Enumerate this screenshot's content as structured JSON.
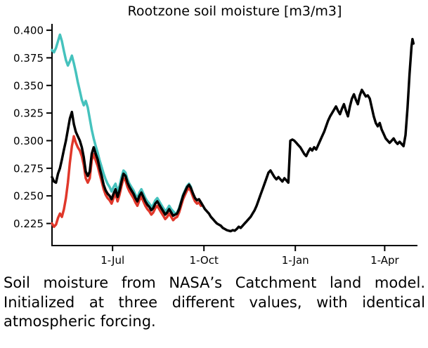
{
  "figure": {
    "background": "#ffffff"
  },
  "chart_data": {
    "type": "line",
    "title": "Rootzone soil moisture [m3/m3]",
    "xlabel": "",
    "ylabel": "",
    "grid": false,
    "legend": "none",
    "xlim": [
      0,
      368
    ],
    "ylim": [
      0.205,
      0.4045
    ],
    "x_ticks": [
      {
        "label": "1-Jul",
        "value": 61
      },
      {
        "label": "1-Oct",
        "value": 153
      },
      {
        "label": "1-Jan",
        "value": 245
      },
      {
        "label": "1-Apr",
        "value": 335
      }
    ],
    "y_ticks": [
      {
        "label": "0.400",
        "value": 0.4
      },
      {
        "label": "0.375",
        "value": 0.375
      },
      {
        "label": "0.350",
        "value": 0.35
      },
      {
        "label": "0.325",
        "value": 0.325
      },
      {
        "label": "0.300",
        "value": 0.3
      },
      {
        "label": "0.275",
        "value": 0.275
      },
      {
        "label": "0.250",
        "value": 0.25
      },
      {
        "label": "0.225",
        "value": 0.225
      }
    ],
    "series": [
      {
        "name": "teal-high-initialization",
        "color": "#45c2bd",
        "x": [
          0,
          2,
          4,
          6,
          8,
          10,
          12,
          14,
          16,
          18,
          20,
          22,
          24,
          26,
          28,
          30,
          32,
          34,
          36,
          38,
          40,
          42,
          44,
          46,
          48,
          50,
          52,
          54,
          56,
          58,
          60,
          62,
          64,
          66,
          68,
          70,
          72,
          74,
          76,
          78,
          80,
          82,
          84,
          86,
          88,
          90,
          92,
          94,
          96,
          98,
          100,
          102,
          104,
          106,
          108,
          110,
          112,
          114,
          116,
          118,
          120,
          122,
          124,
          126,
          128,
          130,
          132,
          134,
          136,
          138,
          140
        ],
        "y": [
          0.382,
          0.38,
          0.384,
          0.39,
          0.396,
          0.39,
          0.381,
          0.373,
          0.368,
          0.372,
          0.377,
          0.37,
          0.362,
          0.353,
          0.345,
          0.337,
          0.332,
          0.336,
          0.33,
          0.32,
          0.31,
          0.302,
          0.295,
          0.289,
          0.282,
          0.276,
          0.27,
          0.265,
          0.261,
          0.258,
          0.254,
          0.258,
          0.261,
          0.254,
          0.259,
          0.267,
          0.273,
          0.271,
          0.265,
          0.261,
          0.258,
          0.255,
          0.251,
          0.248,
          0.253,
          0.256,
          0.252,
          0.248,
          0.245,
          0.243,
          0.24,
          0.242,
          0.246,
          0.248,
          0.245,
          0.242,
          0.239,
          0.236,
          0.238,
          0.241,
          0.238,
          0.236,
          0.234,
          0.235,
          0.239,
          0.245,
          0.251,
          0.255,
          0.259,
          0.261,
          0.258
        ]
      },
      {
        "name": "red-low-initialization",
        "color": "#e0372a",
        "x": [
          0,
          2,
          4,
          6,
          8,
          10,
          12,
          14,
          16,
          18,
          20,
          22,
          24,
          26,
          28,
          30,
          32,
          34,
          36,
          38,
          40,
          42,
          44,
          46,
          48,
          50,
          52,
          54,
          56,
          58,
          60,
          62,
          64,
          66,
          68,
          70,
          72,
          74,
          76,
          78,
          80,
          82,
          84,
          86,
          88,
          90,
          92,
          94,
          96,
          98,
          100,
          102,
          104,
          106,
          108,
          110,
          112,
          114,
          116,
          118,
          120,
          122,
          124,
          126,
          128,
          130,
          132,
          134,
          136,
          138,
          140,
          142,
          144,
          146,
          148,
          150
        ],
        "y": [
          0.225,
          0.222,
          0.224,
          0.23,
          0.234,
          0.231,
          0.238,
          0.248,
          0.262,
          0.28,
          0.295,
          0.304,
          0.298,
          0.294,
          0.291,
          0.286,
          0.278,
          0.266,
          0.262,
          0.266,
          0.282,
          0.288,
          0.282,
          0.277,
          0.27,
          0.263,
          0.256,
          0.251,
          0.248,
          0.246,
          0.243,
          0.248,
          0.252,
          0.245,
          0.251,
          0.259,
          0.266,
          0.264,
          0.258,
          0.254,
          0.251,
          0.248,
          0.244,
          0.241,
          0.246,
          0.249,
          0.245,
          0.241,
          0.238,
          0.236,
          0.233,
          0.235,
          0.239,
          0.241,
          0.238,
          0.235,
          0.232,
          0.229,
          0.231,
          0.234,
          0.231,
          0.228,
          0.23,
          0.231,
          0.235,
          0.241,
          0.247,
          0.251,
          0.255,
          0.257,
          0.254,
          0.249,
          0.245,
          0.243,
          0.244,
          0.241
        ]
      },
      {
        "name": "black-middle-initialization",
        "color": "#000000",
        "x": [
          0,
          2,
          4,
          6,
          8,
          10,
          12,
          14,
          16,
          18,
          20,
          22,
          24,
          26,
          28,
          30,
          32,
          34,
          36,
          38,
          40,
          42,
          44,
          46,
          48,
          50,
          52,
          54,
          56,
          58,
          60,
          62,
          64,
          66,
          68,
          70,
          72,
          74,
          76,
          78,
          80,
          82,
          84,
          86,
          88,
          90,
          92,
          94,
          96,
          98,
          100,
          102,
          104,
          106,
          108,
          110,
          112,
          114,
          116,
          118,
          120,
          122,
          124,
          126,
          128,
          130,
          132,
          134,
          136,
          138,
          140,
          142,
          144,
          146,
          148,
          150,
          152,
          154,
          156,
          158,
          160,
          162,
          164,
          166,
          168,
          170,
          172,
          174,
          176,
          178,
          180,
          182,
          184,
          186,
          188,
          190,
          192,
          194,
          196,
          198,
          200,
          202,
          204,
          206,
          208,
          210,
          212,
          214,
          216,
          218,
          220,
          222,
          224,
          226,
          228,
          230,
          232,
          234,
          236,
          238,
          240,
          242,
          244,
          246,
          248,
          250,
          252,
          254,
          256,
          258,
          260,
          262,
          264,
          266,
          268,
          270,
          272,
          274,
          276,
          278,
          280,
          282,
          284,
          286,
          288,
          290,
          292,
          294,
          296,
          298,
          300,
          302,
          304,
          306,
          308,
          310,
          312,
          314,
          316,
          318,
          320,
          322,
          324,
          326,
          328,
          330,
          332,
          334,
          336,
          338,
          340,
          342,
          344,
          346,
          348,
          350,
          352,
          354,
          356,
          358,
          360,
          362,
          363,
          364
        ],
        "y": [
          0.267,
          0.263,
          0.262,
          0.27,
          0.275,
          0.283,
          0.292,
          0.3,
          0.31,
          0.32,
          0.326,
          0.315,
          0.308,
          0.304,
          0.3,
          0.294,
          0.285,
          0.272,
          0.268,
          0.272,
          0.288,
          0.294,
          0.288,
          0.283,
          0.275,
          0.268,
          0.26,
          0.255,
          0.252,
          0.25,
          0.247,
          0.252,
          0.256,
          0.249,
          0.255,
          0.263,
          0.27,
          0.268,
          0.262,
          0.258,
          0.255,
          0.252,
          0.248,
          0.245,
          0.25,
          0.253,
          0.249,
          0.245,
          0.242,
          0.24,
          0.237,
          0.239,
          0.243,
          0.245,
          0.242,
          0.239,
          0.236,
          0.233,
          0.235,
          0.238,
          0.235,
          0.232,
          0.233,
          0.234,
          0.238,
          0.244,
          0.25,
          0.254,
          0.258,
          0.26,
          0.257,
          0.252,
          0.248,
          0.246,
          0.247,
          0.244,
          0.241,
          0.238,
          0.236,
          0.234,
          0.231,
          0.229,
          0.227,
          0.225,
          0.224,
          0.223,
          0.221,
          0.22,
          0.219,
          0.2185,
          0.218,
          0.219,
          0.2185,
          0.22,
          0.222,
          0.221,
          0.223,
          0.225,
          0.227,
          0.229,
          0.231,
          0.234,
          0.237,
          0.241,
          0.246,
          0.251,
          0.256,
          0.261,
          0.266,
          0.271,
          0.273,
          0.27,
          0.267,
          0.265,
          0.267,
          0.265,
          0.263,
          0.266,
          0.264,
          0.262,
          0.3,
          0.301,
          0.3,
          0.298,
          0.296,
          0.294,
          0.291,
          0.288,
          0.286,
          0.29,
          0.293,
          0.291,
          0.294,
          0.292,
          0.296,
          0.3,
          0.304,
          0.308,
          0.313,
          0.318,
          0.322,
          0.325,
          0.328,
          0.331,
          0.327,
          0.324,
          0.329,
          0.333,
          0.327,
          0.322,
          0.331,
          0.338,
          0.342,
          0.337,
          0.333,
          0.341,
          0.346,
          0.343,
          0.34,
          0.341,
          0.338,
          0.33,
          0.322,
          0.316,
          0.313,
          0.316,
          0.31,
          0.306,
          0.302,
          0.3,
          0.298,
          0.3,
          0.302,
          0.299,
          0.297,
          0.299,
          0.297,
          0.295,
          0.305,
          0.33,
          0.36,
          0.385,
          0.392,
          0.388
        ]
      }
    ]
  },
  "caption": {
    "text": "Soil moisture from NASA’s Catchment land model. Initialized at three different values, with identical atmospheric forcing."
  }
}
